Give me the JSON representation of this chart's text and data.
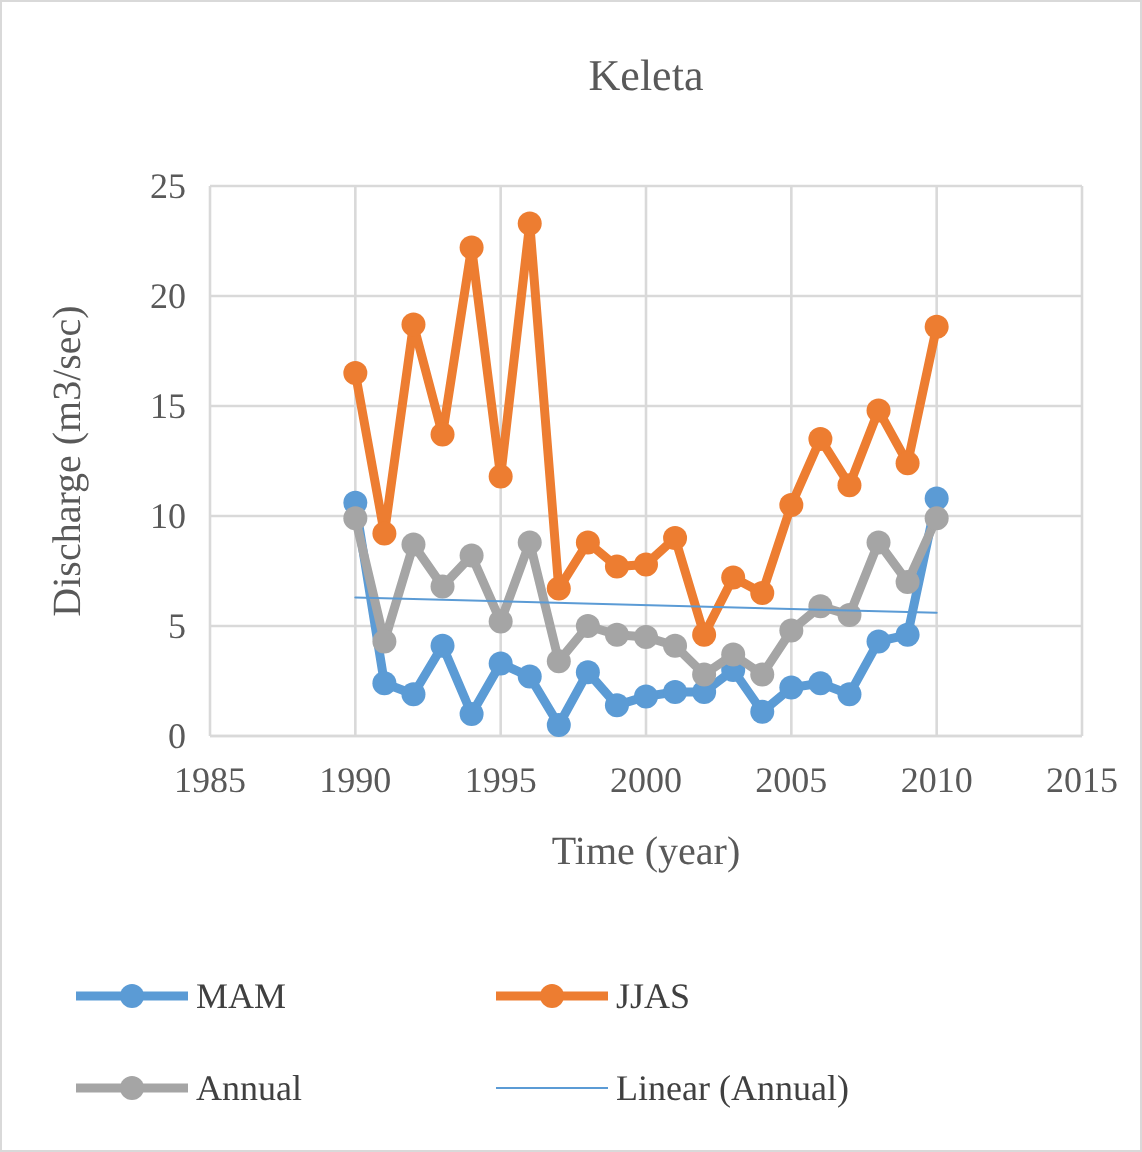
{
  "chart_data": {
    "type": "line",
    "title": "Keleta",
    "xlabel": "Time (year)",
    "ylabel": "Discharge (m3/sec)",
    "x": [
      1990,
      1991,
      1992,
      1993,
      1994,
      1995,
      1996,
      1997,
      1998,
      1999,
      2000,
      2001,
      2002,
      2003,
      2004,
      2005,
      2006,
      2007,
      2008,
      2009,
      2010
    ],
    "series": [
      {
        "name": "MAM",
        "color": "#5b9bd5",
        "marker": "circle",
        "values": [
          10.6,
          2.4,
          1.9,
          4.1,
          1.0,
          3.3,
          2.7,
          0.5,
          2.9,
          1.4,
          1.8,
          2.0,
          2.0,
          3.0,
          1.1,
          2.2,
          2.4,
          1.9,
          4.3,
          4.6,
          10.8
        ]
      },
      {
        "name": "JJAS",
        "color": "#ed7d31",
        "marker": "circle",
        "values": [
          16.5,
          9.2,
          18.7,
          13.7,
          22.2,
          11.8,
          23.3,
          6.7,
          8.8,
          7.7,
          7.8,
          9.0,
          4.6,
          7.2,
          6.5,
          10.5,
          13.5,
          11.4,
          14.8,
          12.4,
          18.6
        ]
      },
      {
        "name": "Annual",
        "color": "#a5a5a5",
        "marker": "circle",
        "values": [
          9.9,
          4.3,
          8.7,
          6.8,
          8.2,
          5.2,
          8.8,
          3.4,
          5.0,
          4.6,
          4.5,
          4.1,
          2.8,
          3.7,
          2.8,
          4.8,
          5.9,
          5.5,
          8.8,
          7.0,
          9.9
        ]
      },
      {
        "name": "Linear (Annual)",
        "color": "#5b9bd5",
        "marker": "none",
        "x": [
          1990,
          2010
        ],
        "values": [
          6.3,
          5.6
        ]
      }
    ],
    "xlim": [
      1985,
      2015
    ],
    "xticks": [
      1985,
      1990,
      1995,
      2000,
      2005,
      2010,
      2015
    ],
    "ylim": [
      0,
      25
    ],
    "yticks": [
      0,
      5,
      10,
      15,
      20,
      25
    ],
    "grid": true,
    "legend": "bottom"
  }
}
